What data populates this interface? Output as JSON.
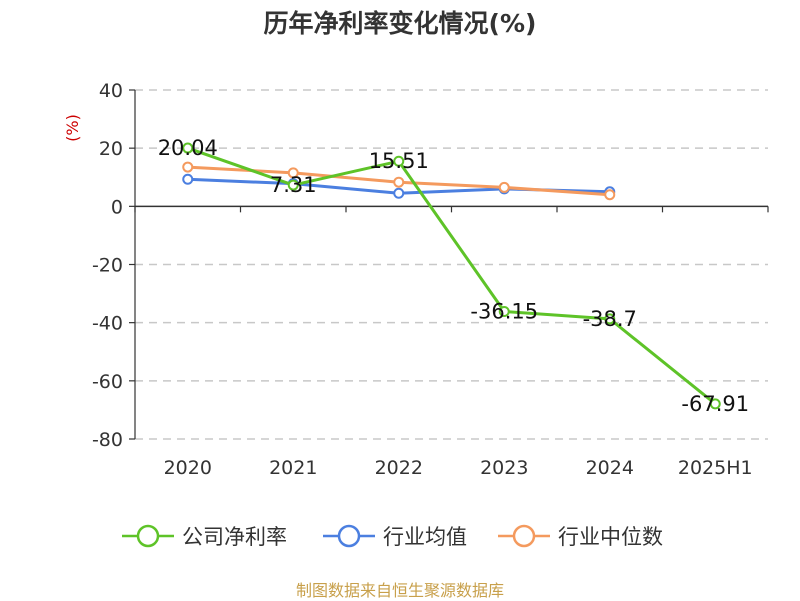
{
  "title": "历年净利率变化情况(%)",
  "unit_label": "(%)",
  "footer": "制图数据来自恒生聚源数据库",
  "colors": {
    "company": "#5ec328",
    "industry_avg": "#4b7fe0",
    "industry_median": "#f49a5e",
    "grid": "#c8c8c8",
    "axis": "#333333"
  },
  "chart_data": {
    "type": "line",
    "title": "历年净利率变化情况(%)",
    "ylabel": "(%)",
    "ylim": [
      -80,
      40
    ],
    "yticks": [
      40,
      20,
      0,
      -20,
      -40,
      -60,
      -80
    ],
    "categories": [
      "2020",
      "2021",
      "2022",
      "2023",
      "2024",
      "2025H1"
    ],
    "grid": true,
    "legend_position": "bottom",
    "series": [
      {
        "name": "公司净利率",
        "values": [
          20.04,
          7.31,
          15.51,
          -36.15,
          -38.7,
          -67.91
        ],
        "labels": [
          "20.04",
          "7.31",
          "15.51",
          "-36.15",
          "-38.7",
          "-67.91"
        ]
      },
      {
        "name": "行业均值",
        "values": [
          9.3,
          7.8,
          4.5,
          6.0,
          5.0,
          null
        ]
      },
      {
        "name": "行业中位数",
        "values": [
          13.5,
          11.5,
          8.3,
          6.5,
          4.0,
          null
        ]
      }
    ]
  }
}
